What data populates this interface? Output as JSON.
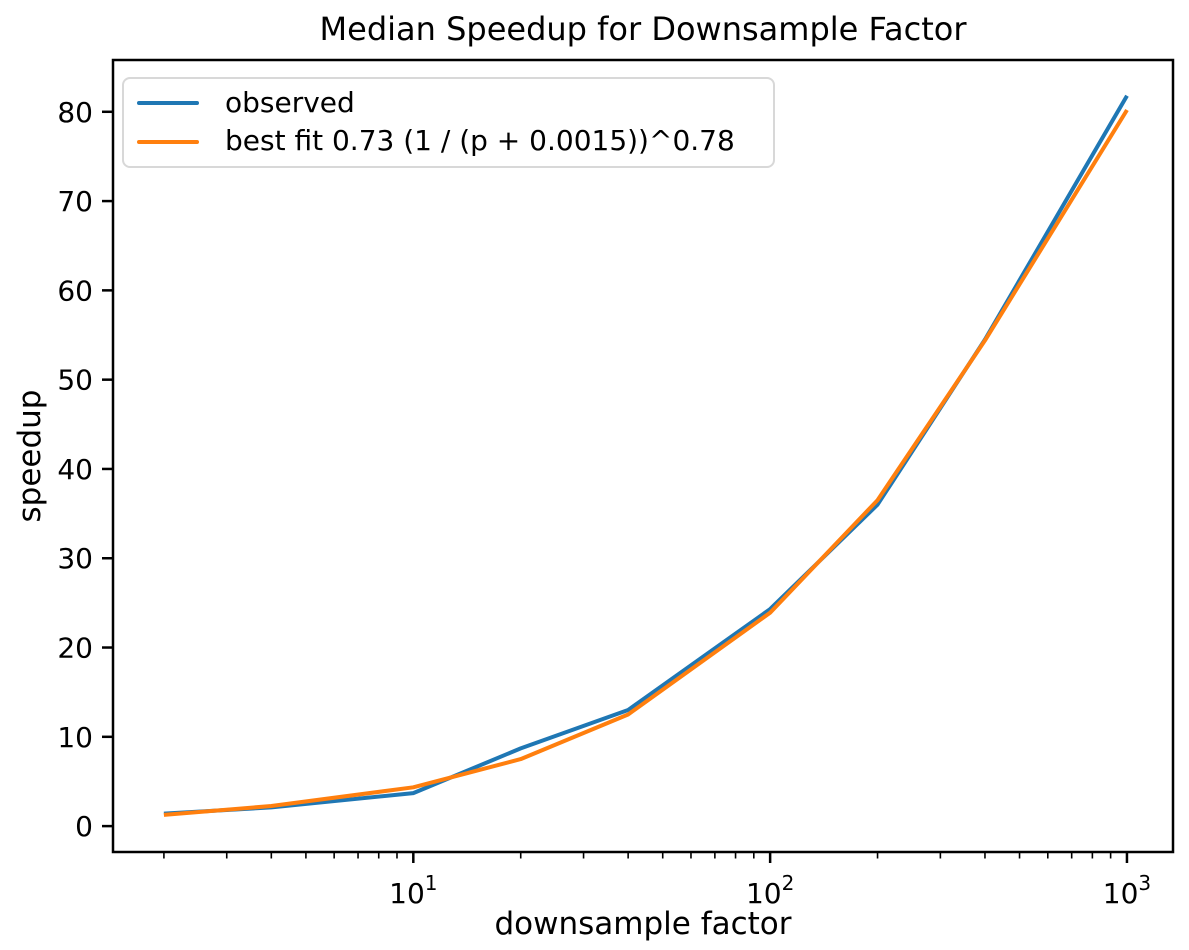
{
  "figure": {
    "title": "Median Speedup for Downsample Factor",
    "xlabel": "downsample factor",
    "ylabel": "speedup"
  },
  "legend": {
    "position": "upper left",
    "items": [
      {
        "label": "observed",
        "color": "#1f77b4"
      },
      {
        "label": "best fit 0.73 (1 / (p + 0.0015))^0.78",
        "color": "#ff7f0e"
      }
    ]
  },
  "chart_data": {
    "type": "line",
    "title": "Median Speedup for Downsample Factor",
    "xlabel": "downsample factor",
    "ylabel": "speedup",
    "x_scale": "log",
    "grid": false,
    "legend_position": "upper left",
    "x": [
      2,
      4,
      10,
      20,
      40,
      100,
      200,
      400,
      1000
    ],
    "series": [
      {
        "name": "observed",
        "color": "#1f77b4",
        "values": [
          1.4,
          2.1,
          3.7,
          8.7,
          13.0,
          24.3,
          36.0,
          54.5,
          81.8
        ]
      },
      {
        "name": "best fit 0.73 (1 / (p + 0.0015))^0.78",
        "color": "#ff7f0e",
        "values": [
          1.25,
          2.25,
          4.35,
          7.5,
          12.5,
          23.9,
          36.5,
          54.4,
          80.2
        ]
      }
    ],
    "xlim": [
      1.44,
      1346
    ],
    "ylim": [
      -2.9,
      85.8
    ],
    "x_major_ticks": [
      {
        "value": 10,
        "base": "10",
        "exponent": "1"
      },
      {
        "value": 100,
        "base": "10",
        "exponent": "2"
      },
      {
        "value": 1000,
        "base": "10",
        "exponent": "3"
      }
    ],
    "x_minor_ticks": [
      2,
      3,
      4,
      5,
      6,
      7,
      8,
      9,
      20,
      30,
      40,
      50,
      60,
      70,
      80,
      90,
      200,
      300,
      400,
      500,
      600,
      700,
      800,
      900
    ],
    "y_ticks": [
      0,
      10,
      20,
      30,
      40,
      50,
      60,
      70,
      80
    ]
  },
  "colors": {
    "axis": "#000000",
    "background": "#ffffff",
    "legend_border": "#d8d8d8",
    "observed": "#1f77b4",
    "best_fit": "#ff7f0e"
  }
}
